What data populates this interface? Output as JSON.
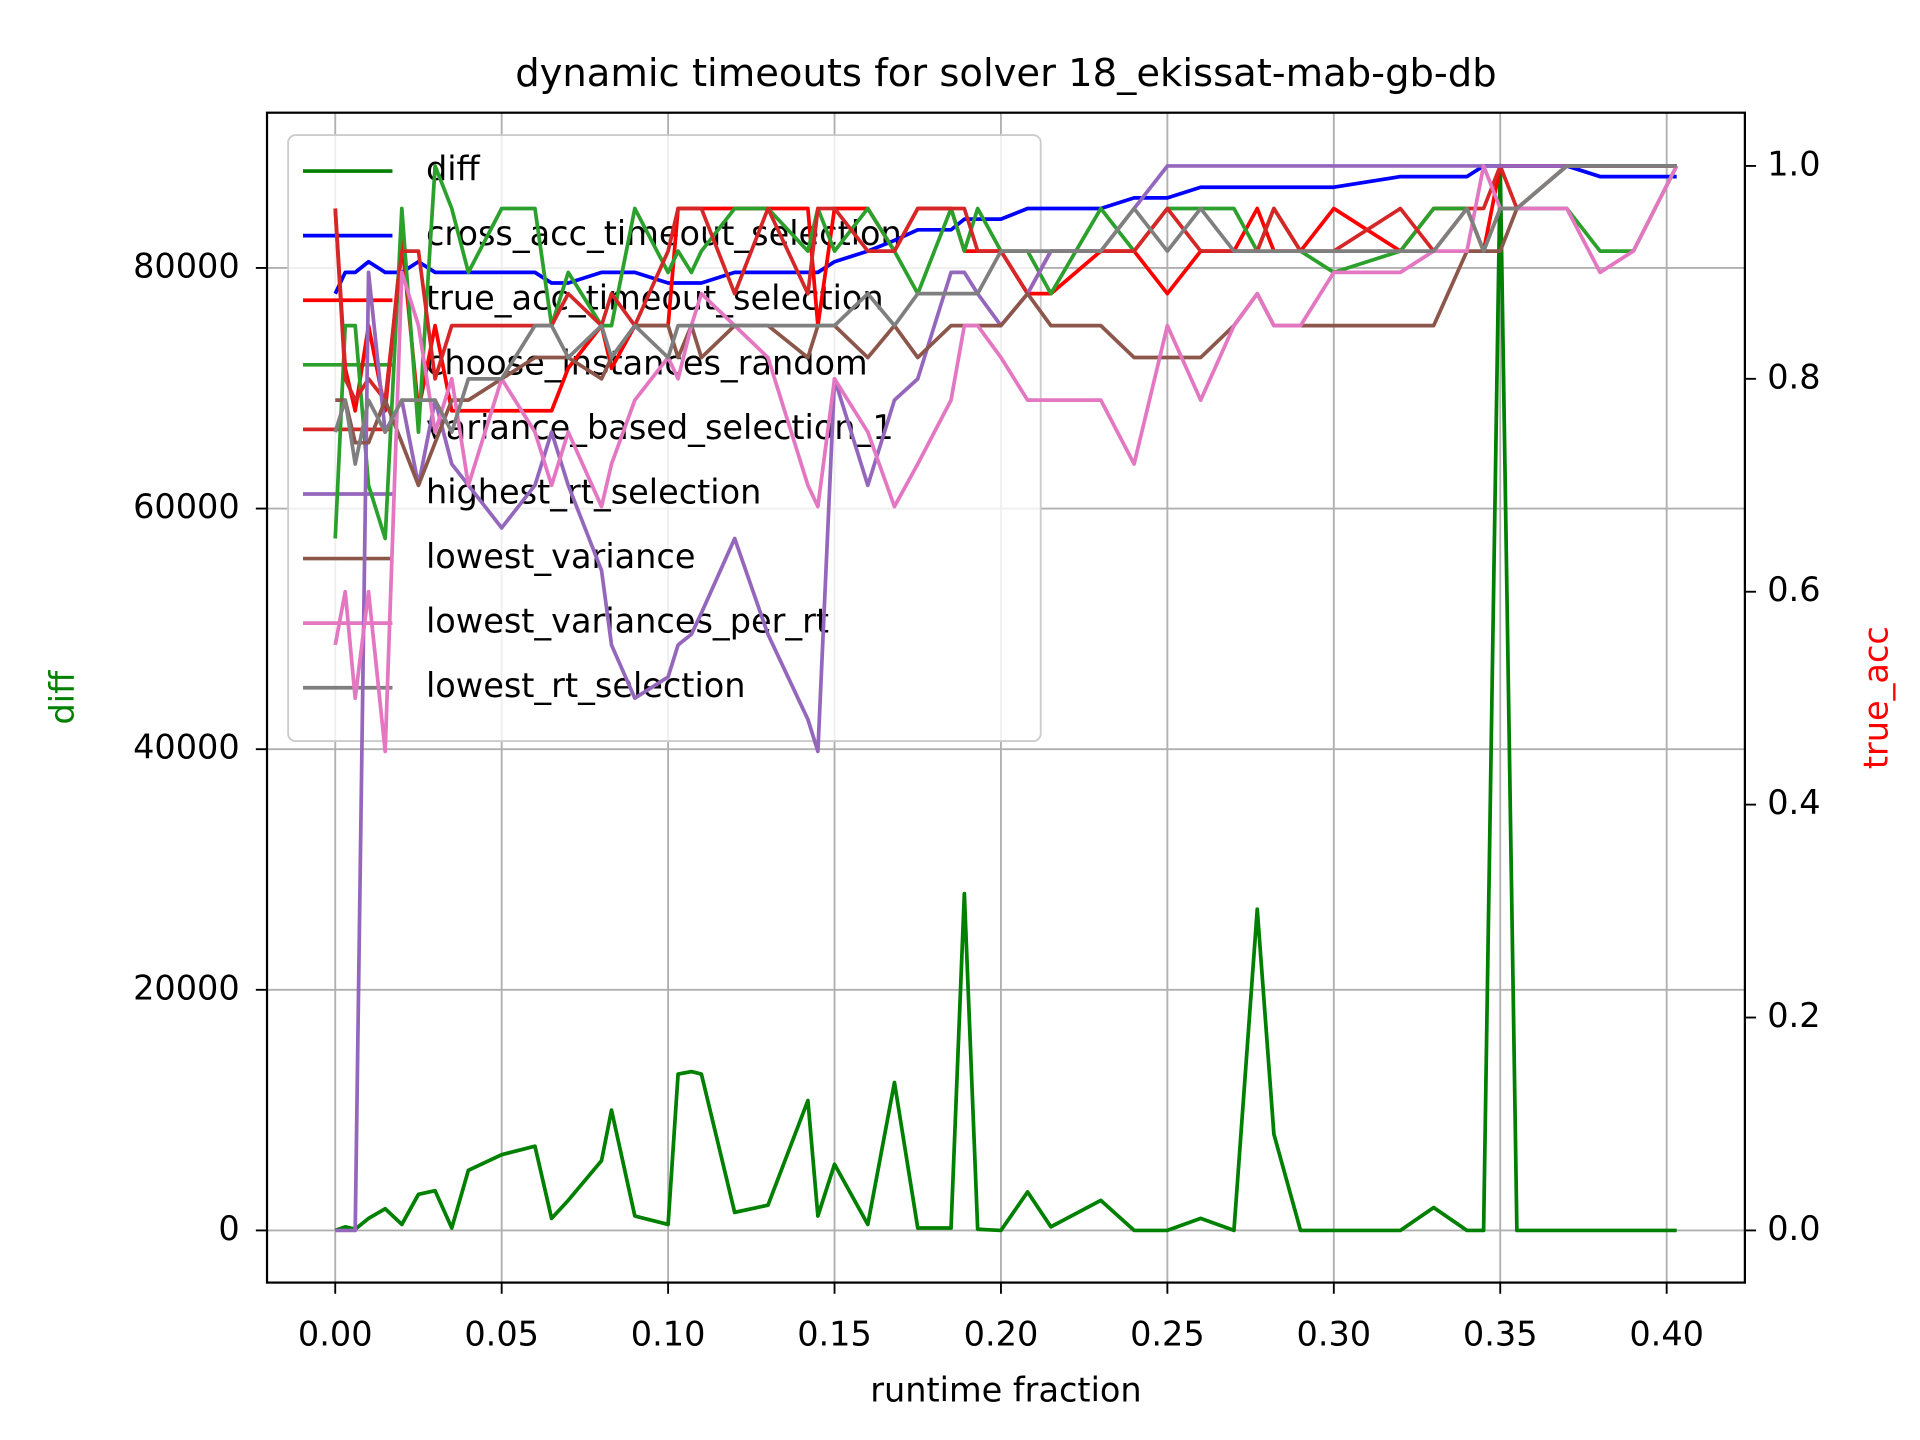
{
  "chart_data": {
    "type": "line",
    "title": "dynamic timeouts for solver 18_ekissat-mab-gb-db",
    "x_label": "runtime fraction",
    "y_label": "diff",
    "y2_label": "true_acc",
    "y_label_color": "#008000",
    "y2_label_color": "#ff0000",
    "grid": true,
    "legend": "upper left",
    "xlim": [
      -0.0205,
      0.4235
    ],
    "xticks": [
      {
        "value": 0,
        "label": "0.00"
      },
      {
        "value": 0.05,
        "label": "0.05"
      },
      {
        "value": 0.1,
        "label": "0.10"
      },
      {
        "value": 0.15,
        "label": "0.15"
      },
      {
        "value": 0.2,
        "label": "0.20"
      },
      {
        "value": 0.25,
        "label": "0.25"
      },
      {
        "value": 0.3,
        "label": "0.30"
      },
      {
        "value": 0.35,
        "label": "0.35"
      },
      {
        "value": 0.4,
        "label": "0.40"
      }
    ],
    "ylim": [
      -4335,
      92903
    ],
    "yticks": [
      0,
      20000,
      40000,
      60000,
      80000
    ],
    "y2lim": [
      -0.049,
      1.05
    ],
    "y2ticks": [
      {
        "value": 0,
        "label": "0.0"
      },
      0.2,
      0.4,
      0.6,
      0.8,
      {
        "value": 1,
        "label": "1.0"
      }
    ],
    "x": [
      0,
      0.003,
      0.006,
      0.01,
      0.015,
      0.02,
      0.025,
      0.03,
      0.035,
      0.04,
      0.05,
      0.06,
      0.065,
      0.07,
      0.08,
      0.083,
      0.09,
      0.1,
      0.103,
      0.107,
      0.11,
      0.12,
      0.13,
      0.142,
      0.145,
      0.15,
      0.16,
      0.168,
      0.175,
      0.185,
      0.189,
      0.193,
      0.2,
      0.208,
      0.215,
      0.23,
      0.24,
      0.25,
      0.26,
      0.27,
      0.277,
      0.282,
      0.29,
      0.3,
      0.32,
      0.33,
      0.34,
      0.345,
      0.35,
      0.355,
      0.37,
      0.38,
      0.39,
      0.403
    ],
    "series": [
      {
        "name": "diff",
        "color": "#008000",
        "values": [
          0,
          300,
          100,
          1000,
          1800,
          500,
          3000,
          3300,
          200,
          5000,
          6300,
          7000,
          1000,
          2500,
          5800,
          10000,
          1200,
          500,
          13000,
          13200,
          13000,
          1500,
          2100,
          10800,
          1200,
          5500,
          500,
          12300,
          200,
          200,
          28000,
          100,
          0,
          3200,
          300,
          2500,
          0,
          0,
          1000,
          0,
          26700,
          8000,
          0,
          0,
          0,
          1900,
          0,
          0,
          88500,
          0,
          0,
          0,
          0,
          0
        ]
      },
      {
        "name": "cross_acc_timeout_selection",
        "color": "#0000ff",
        "axis": "y2",
        "values": [
          0.88,
          0.9,
          0.9,
          0.91,
          0.9,
          0.9,
          0.91,
          0.9,
          0.9,
          0.9,
          0.9,
          0.9,
          0.89,
          0.89,
          0.9,
          0.9,
          0.9,
          0.89,
          0.89,
          0.89,
          0.89,
          0.9,
          0.9,
          0.9,
          0.9,
          0.91,
          0.92,
          0.93,
          0.94,
          0.94,
          0.95,
          0.95,
          0.95,
          0.96,
          0.96,
          0.96,
          0.97,
          0.97,
          0.98,
          0.98,
          0.98,
          0.98,
          0.98,
          0.98,
          0.99,
          0.99,
          0.99,
          1,
          1,
          1,
          1,
          0.99,
          0.99,
          0.99
        ]
      },
      {
        "name": "true_acc_timeout_selection",
        "color": "#ff0000",
        "axis": "y2",
        "values": [
          0.96,
          0.81,
          0.77,
          0.85,
          0.77,
          0.93,
          0.77,
          0.85,
          0.77,
          0.77,
          0.77,
          0.77,
          0.77,
          0.81,
          0.85,
          0.81,
          0.85,
          0.85,
          0.96,
          0.96,
          0.96,
          0.96,
          0.96,
          0.96,
          0.85,
          0.96,
          0.96,
          0.92,
          0.96,
          0.96,
          0.92,
          0.92,
          0.92,
          0.88,
          0.88,
          0.92,
          0.92,
          0.88,
          0.92,
          0.92,
          0.96,
          0.92,
          0.92,
          0.96,
          0.92,
          0.96,
          0.96,
          0.92,
          1,
          1,
          1,
          1,
          1,
          1
        ]
      },
      {
        "name": "choose_instances_random",
        "color": "#2ca02c",
        "axis": "y2",
        "values": [
          0.65,
          0.85,
          0.85,
          0.7,
          0.65,
          0.96,
          0.75,
          1,
          0.96,
          0.9,
          0.96,
          0.96,
          0.85,
          0.9,
          0.85,
          0.85,
          0.96,
          0.9,
          0.92,
          0.9,
          0.92,
          0.96,
          0.96,
          0.92,
          0.96,
          0.92,
          0.96,
          0.92,
          0.88,
          0.96,
          0.92,
          0.96,
          0.92,
          0.92,
          0.88,
          0.96,
          0.92,
          0.96,
          0.96,
          0.96,
          0.92,
          0.96,
          0.92,
          0.9,
          0.92,
          0.96,
          0.96,
          0.92,
          0.96,
          0.96,
          0.96,
          0.92,
          0.92,
          1
        ]
      },
      {
        "name": "variance_based_selection_1",
        "color": "#d62728",
        "axis": "y2",
        "values": [
          0.96,
          0.8,
          0.78,
          0.8,
          0.78,
          0.92,
          0.92,
          0.8,
          0.85,
          0.85,
          0.85,
          0.85,
          0.85,
          0.88,
          0.85,
          0.88,
          0.85,
          0.92,
          0.96,
          0.96,
          0.96,
          0.88,
          0.96,
          0.88,
          0.96,
          0.96,
          0.92,
          0.92,
          0.96,
          0.96,
          0.96,
          0.92,
          0.92,
          0.88,
          0.92,
          0.92,
          0.92,
          0.96,
          0.92,
          0.92,
          0.92,
          0.96,
          0.92,
          0.92,
          0.96,
          0.92,
          0.96,
          0.96,
          1,
          0.96,
          1,
          1,
          1,
          1
        ]
      },
      {
        "name": "highest_rt_selection",
        "color": "#9467bd",
        "axis": "y2",
        "values": [
          0,
          0,
          0,
          0.9,
          0.75,
          0.78,
          0.7,
          0.78,
          0.72,
          0.7,
          0.66,
          0.7,
          0.75,
          0.7,
          0.62,
          0.55,
          0.5,
          0.52,
          0.55,
          0.56,
          0.58,
          0.65,
          0.56,
          0.48,
          0.45,
          0.8,
          0.7,
          0.78,
          0.8,
          0.9,
          0.9,
          0.88,
          0.85,
          0.88,
          0.92,
          0.92,
          0.96,
          1,
          1,
          1,
          1,
          1,
          1,
          1,
          1,
          1,
          1,
          1,
          1,
          1,
          1,
          1,
          1,
          1
        ]
      },
      {
        "name": "lowest_variance",
        "color": "#8c564b",
        "axis": "y2",
        "values": [
          0.78,
          0.78,
          0.74,
          0.74,
          0.78,
          0.74,
          0.7,
          0.74,
          0.78,
          0.78,
          0.8,
          0.82,
          0.82,
          0.82,
          0.8,
          0.82,
          0.85,
          0.85,
          0.82,
          0.85,
          0.82,
          0.85,
          0.85,
          0.82,
          0.85,
          0.85,
          0.82,
          0.85,
          0.82,
          0.85,
          0.85,
          0.85,
          0.85,
          0.88,
          0.85,
          0.85,
          0.82,
          0.82,
          0.82,
          0.85,
          0.88,
          0.85,
          0.85,
          0.85,
          0.85,
          0.85,
          0.92,
          0.92,
          0.92,
          0.96,
          1,
          1,
          1,
          1
        ]
      },
      {
        "name": "lowest_variances_per_rt",
        "color": "#e377c2",
        "axis": "y2",
        "values": [
          0.55,
          0.6,
          0.5,
          0.6,
          0.45,
          0.9,
          0.85,
          0.75,
          0.8,
          0.7,
          0.8,
          0.75,
          0.7,
          0.75,
          0.68,
          0.72,
          0.78,
          0.82,
          0.8,
          0.85,
          0.88,
          0.85,
          0.82,
          0.7,
          0.68,
          0.8,
          0.75,
          0.68,
          0.72,
          0.78,
          0.85,
          0.85,
          0.82,
          0.78,
          0.78,
          0.78,
          0.72,
          0.85,
          0.78,
          0.85,
          0.88,
          0.85,
          0.85,
          0.9,
          0.9,
          0.92,
          0.92,
          1,
          0.96,
          0.96,
          0.96,
          0.9,
          0.92,
          1
        ]
      },
      {
        "name": "lowest_rt_selection",
        "color": "#7f7f7f",
        "axis": "y2",
        "values": [
          0.75,
          0.78,
          0.72,
          0.78,
          0.75,
          0.78,
          0.78,
          0.78,
          0.75,
          0.8,
          0.8,
          0.85,
          0.85,
          0.82,
          0.85,
          0.82,
          0.85,
          0.82,
          0.85,
          0.85,
          0.85,
          0.85,
          0.85,
          0.85,
          0.85,
          0.85,
          0.88,
          0.85,
          0.88,
          0.88,
          0.88,
          0.88,
          0.92,
          0.92,
          0.92,
          0.92,
          0.96,
          0.92,
          0.96,
          0.92,
          0.92,
          0.92,
          0.92,
          0.92,
          0.92,
          0.92,
          0.96,
          0.92,
          0.96,
          0.96,
          1,
          1,
          1,
          1
        ]
      }
    ]
  }
}
